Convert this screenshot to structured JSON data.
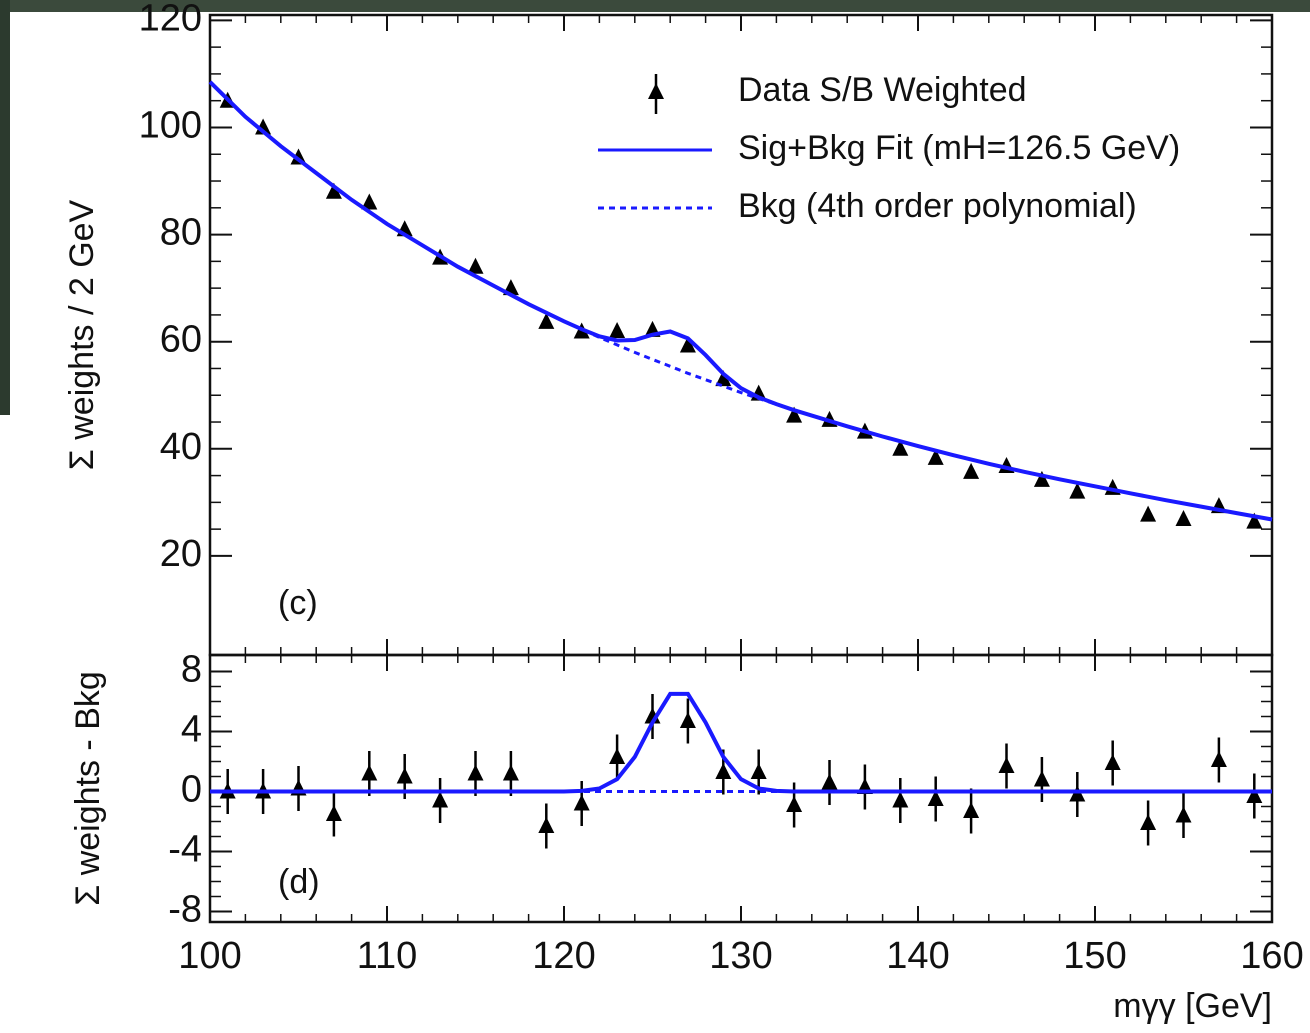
{
  "chart_data": [
    {
      "type": "scatter",
      "ylabel": "Σ weights / 2 GeV",
      "annotation": "(c)",
      "xlim": [
        100,
        160
      ],
      "xticks": [
        100,
        110,
        120,
        130,
        140,
        150,
        160
      ],
      "ylim": [
        1.5,
        121
      ],
      "yticks": [
        20,
        40,
        60,
        80,
        100,
        120
      ],
      "series": [
        {
          "name": "Data S/B Weighted",
          "color": "#000000",
          "x": [
            101,
            103,
            105,
            107,
            109,
            111,
            113,
            115,
            117,
            119,
            121,
            123,
            125,
            127,
            129,
            131,
            133,
            135,
            137,
            139,
            141,
            143,
            145,
            147,
            149,
            151,
            153,
            155,
            157,
            159
          ],
          "values": [
            105,
            100,
            94.4,
            88,
            86,
            81,
            75.7,
            74,
            70,
            63.7,
            61.9,
            62,
            62.2,
            59.3,
            53,
            50.3,
            46.2,
            45.4,
            43.2,
            40,
            38.3,
            35.7,
            36.8,
            34.2,
            32,
            32.7,
            27.7,
            26.9,
            29.3,
            26.4
          ]
        },
        {
          "name": "Sig+Bkg Fit (mH=126.5 GeV)",
          "color": "#1a1aff",
          "x": [
            100,
            102,
            104,
            106,
            108,
            110,
            112,
            114,
            116,
            118,
            120,
            121,
            122,
            123,
            124,
            125,
            126,
            127,
            128,
            129,
            130,
            131,
            132,
            133,
            134,
            136,
            138,
            140,
            142,
            144,
            146,
            148,
            150,
            152,
            154,
            156,
            158,
            160
          ],
          "values": [
            108.5,
            102,
            96.5,
            91.5,
            86.5,
            82,
            78,
            74,
            70.5,
            67,
            63.8,
            62.34,
            61,
            60.22,
            60.31,
            61.3,
            61.91,
            60.61,
            57.5,
            54.01,
            51.32,
            49.6,
            48.34,
            47.2,
            46.2,
            44.2,
            42.3,
            40.5,
            38.8,
            37.2,
            35.7,
            34.3,
            33,
            31.7,
            30.4,
            29.2,
            28,
            26.8
          ]
        },
        {
          "name": "Bkg (4th order polynomial)",
          "color": "#1a1aff",
          "dashed": true,
          "x": [
            100,
            102,
            104,
            106,
            108,
            110,
            112,
            114,
            116,
            118,
            120,
            121,
            122,
            123,
            124,
            125,
            126,
            127,
            128,
            129,
            130,
            131,
            132,
            133,
            134,
            136,
            138,
            140,
            142,
            144,
            146,
            148,
            150,
            152,
            154,
            156,
            158,
            160
          ],
          "values": [
            108.5,
            102,
            96.5,
            91.5,
            86.5,
            82,
            78,
            74,
            70.5,
            67,
            63.8,
            62.3,
            60.8,
            59.4,
            58,
            56.7,
            55.4,
            54.1,
            52.9,
            51.7,
            50.5,
            49.4,
            48.3,
            47.2,
            46.2,
            44.2,
            42.3,
            40.5,
            38.8,
            37.2,
            35.7,
            34.3,
            33,
            31.7,
            30.4,
            29.2,
            28,
            26.8
          ]
        }
      ]
    },
    {
      "type": "scatter",
      "ylabel": "Σ weights - Bkg",
      "annotation": "(d)",
      "xlabel": "mγγ [GeV]",
      "xlim": [
        100,
        160
      ],
      "xticks": [
        100,
        110,
        120,
        130,
        140,
        150,
        160
      ],
      "ylim": [
        -8.7,
        9.1
      ],
      "yticks": [
        8,
        4,
        0,
        -4,
        -8
      ],
      "series": [
        {
          "color": "#000000",
          "x": [
            101,
            103,
            105,
            107,
            109,
            111,
            113,
            115,
            117,
            119,
            121,
            123,
            125,
            127,
            129,
            131,
            133,
            135,
            137,
            139,
            141,
            143,
            145,
            147,
            149,
            151,
            153,
            155,
            157,
            159
          ],
          "values": [
            0,
            0,
            0.2,
            -1.5,
            1.2,
            1,
            -0.6,
            1.2,
            1.2,
            -2.3,
            -0.8,
            2.3,
            5,
            4.7,
            1.3,
            1.3,
            -0.9,
            0.6,
            0.3,
            -0.6,
            -0.5,
            -1.3,
            1.7,
            0.8,
            -0.2,
            1.9,
            -2.1,
            -1.6,
            2.1,
            -0.3
          ],
          "errors": [
            1.5,
            1.5,
            1.5,
            1.5,
            1.5,
            1.5,
            1.5,
            1.5,
            1.5,
            1.5,
            1.5,
            1.5,
            1.5,
            1.5,
            1.5,
            1.5,
            1.5,
            1.5,
            1.5,
            1.5,
            1.5,
            1.5,
            1.5,
            1.5,
            1.5,
            1.5,
            1.5,
            1.5,
            1.5,
            1.5
          ]
        },
        {
          "color": "#1a1aff",
          "x": [
            100,
            120,
            121,
            122,
            123,
            124,
            125,
            126,
            127,
            128,
            129,
            130,
            131,
            132,
            133,
            160
          ],
          "values": [
            0,
            0,
            0.04,
            0.2,
            0.82,
            2.31,
            4.6,
            6.51,
            6.51,
            4.6,
            2.31,
            0.82,
            0.2,
            0.04,
            0,
            0
          ]
        },
        {
          "color": "#1a1aff",
          "dashed": true,
          "x": [
            100,
            160
          ],
          "values": [
            0,
            0
          ]
        }
      ]
    }
  ]
}
